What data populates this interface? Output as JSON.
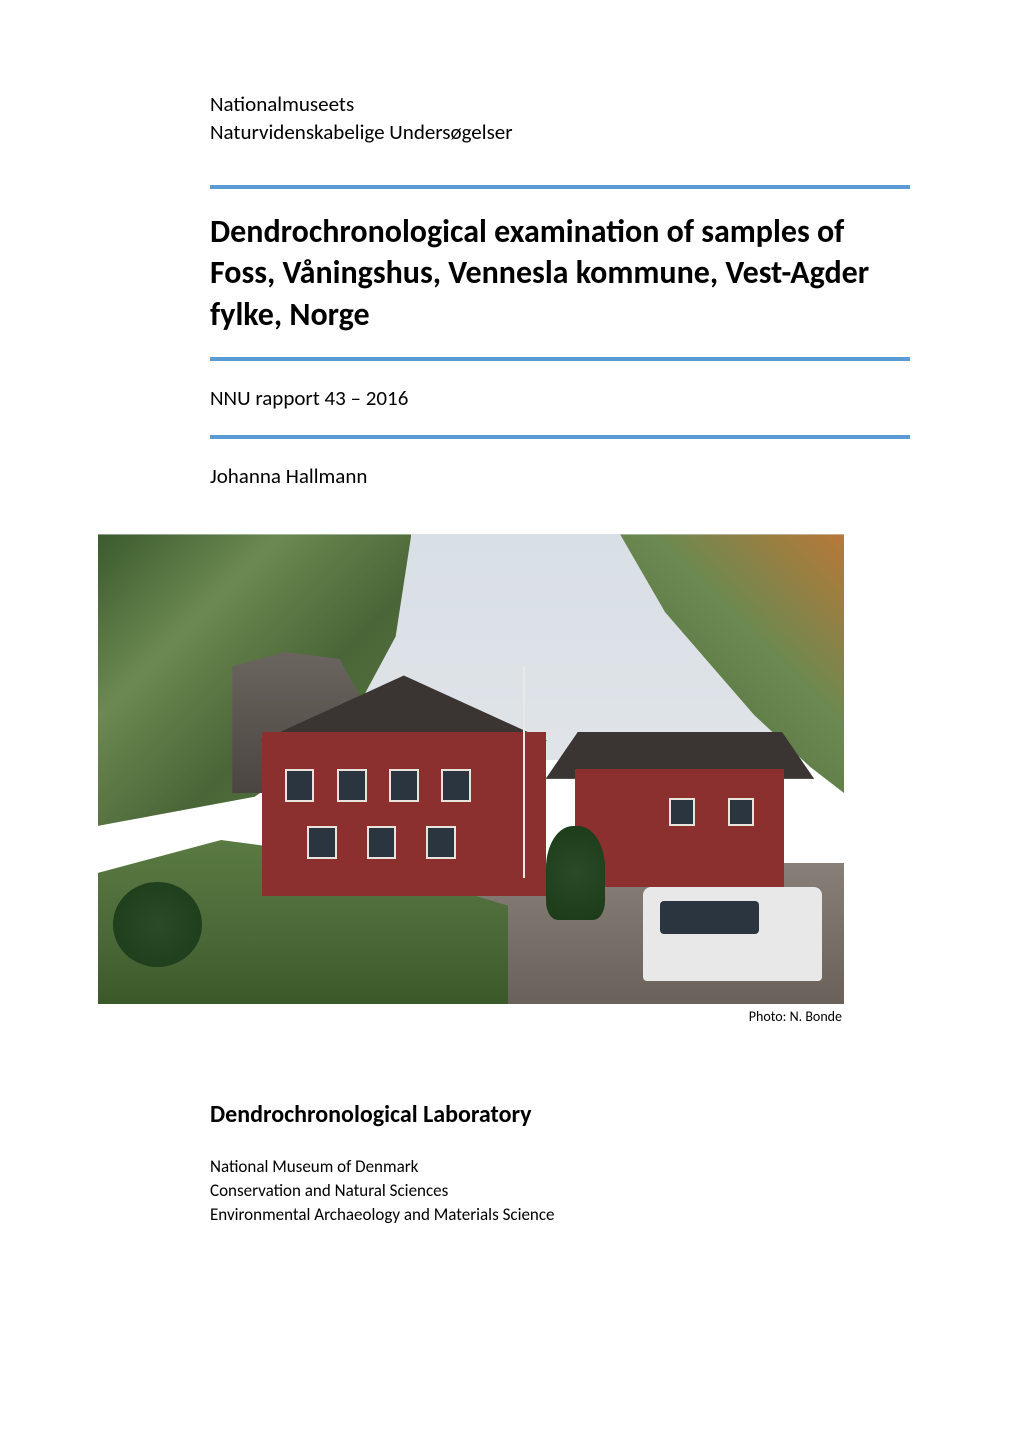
{
  "header": {
    "org_line1": "Nationalmuseets",
    "org_line2": "Naturvidenskabelige Undersøgelser"
  },
  "title": "Dendrochronological examination of samples of Foss, Våningshus, Vennesla kommune, Vest-Agder fylke, Norge",
  "report_number": "NNU rapport 43 – 2016",
  "author": "Johanna Hallmann",
  "photo": {
    "credit": "Photo: N. Bonde",
    "colors": {
      "sky": "#d8dfe6",
      "trees": "#4a6638",
      "autumn_trees": "#b87838",
      "house_red": "#8b2f2f",
      "roof": "#3a3532",
      "window_frame": "#e8e4dc",
      "window_glass": "#2a3540",
      "grass": "#4a6838",
      "pavement": "#888078",
      "car": "#e8e8e8",
      "rock": "#6b6560"
    }
  },
  "lab": {
    "heading": "Dendrochronological Laboratory",
    "line1": "National Museum of Denmark",
    "line2": "Conservation and Natural Sciences",
    "line3": "Environmental Archaeology and Materials Science"
  },
  "style": {
    "rule_color": "#5b9bd5",
    "text_color": "#000000",
    "background": "#ffffff",
    "font_family": "Calibri",
    "title_fontsize": 32,
    "body_fontsize": 21,
    "lab_heading_fontsize": 24,
    "footer_fontsize": 17,
    "credit_fontsize": 14
  }
}
